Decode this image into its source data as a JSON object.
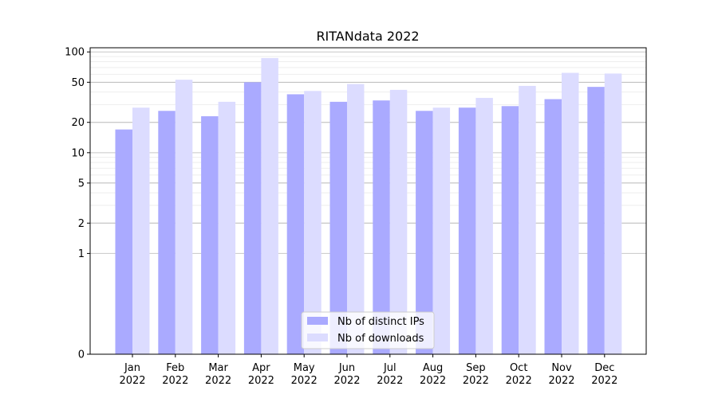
{
  "chart_data": {
    "type": "bar",
    "title": "RITANdata 2022",
    "xlabel": "",
    "ylabel": "",
    "yscale": "symlog",
    "ylim": [
      0,
      110
    ],
    "yticks": [
      0,
      1,
      2,
      5,
      10,
      20,
      50,
      100
    ],
    "grid": true,
    "legend_position": "bottom-center",
    "categories": [
      {
        "month": "Jan",
        "year": "2022"
      },
      {
        "month": "Feb",
        "year": "2022"
      },
      {
        "month": "Mar",
        "year": "2022"
      },
      {
        "month": "Apr",
        "year": "2022"
      },
      {
        "month": "May",
        "year": "2022"
      },
      {
        "month": "Jun",
        "year": "2022"
      },
      {
        "month": "Jul",
        "year": "2022"
      },
      {
        "month": "Aug",
        "year": "2022"
      },
      {
        "month": "Sep",
        "year": "2022"
      },
      {
        "month": "Oct",
        "year": "2022"
      },
      {
        "month": "Nov",
        "year": "2022"
      },
      {
        "month": "Dec",
        "year": "2022"
      }
    ],
    "series": [
      {
        "name": "Nb of distinct IPs",
        "color": "#aaaaff",
        "values": [
          17,
          26,
          23,
          50,
          38,
          32,
          33,
          26,
          28,
          29,
          34,
          45
        ]
      },
      {
        "name": "Nb of downloads",
        "color": "#dcdcff",
        "values": [
          28,
          53,
          32,
          87,
          41,
          48,
          42,
          28,
          35,
          46,
          62,
          61
        ]
      }
    ]
  }
}
